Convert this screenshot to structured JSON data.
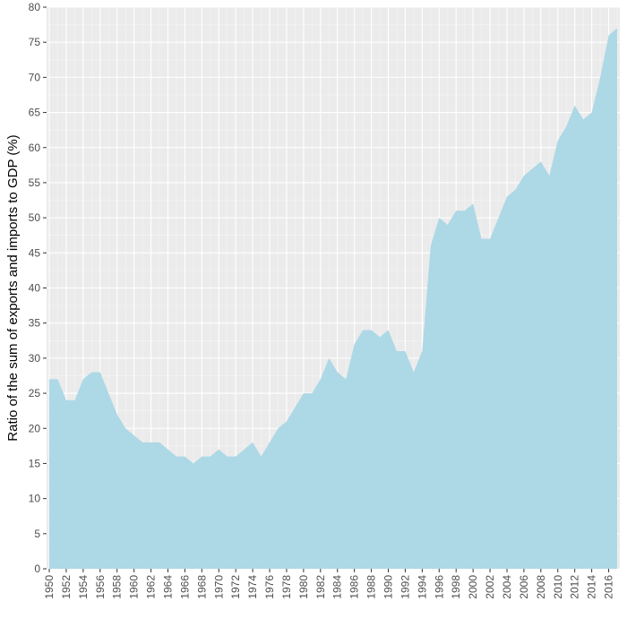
{
  "chart_data": {
    "type": "area",
    "title": "",
    "xlabel": "",
    "ylabel": "Ratio of the sum of exports and imports to GDP (%)",
    "xlim": [
      1950,
      2017
    ],
    "ylim": [
      0,
      80
    ],
    "grid": true,
    "y_ticks": [
      0,
      5,
      10,
      15,
      20,
      25,
      30,
      35,
      40,
      45,
      50,
      55,
      60,
      65,
      70,
      75,
      80
    ],
    "x_ticks": [
      1950,
      1952,
      1954,
      1956,
      1958,
      1960,
      1962,
      1964,
      1966,
      1968,
      1970,
      1972,
      1974,
      1976,
      1978,
      1980,
      1982,
      1984,
      1986,
      1988,
      1990,
      1992,
      1994,
      1996,
      1998,
      2000,
      2002,
      2004,
      2006,
      2008,
      2010,
      2012,
      2014,
      2016
    ],
    "colors": {
      "fill": "#add8e6",
      "panel": "#ebebeb",
      "grid_major": "#ffffff",
      "grid_minor": "#f5f5f5"
    },
    "x": [
      1950,
      1951,
      1952,
      1953,
      1954,
      1955,
      1956,
      1957,
      1958,
      1959,
      1960,
      1961,
      1962,
      1963,
      1964,
      1965,
      1966,
      1967,
      1968,
      1969,
      1970,
      1971,
      1972,
      1973,
      1974,
      1975,
      1976,
      1977,
      1978,
      1979,
      1980,
      1981,
      1982,
      1983,
      1984,
      1985,
      1986,
      1987,
      1988,
      1989,
      1990,
      1991,
      1992,
      1993,
      1994,
      1995,
      1996,
      1997,
      1998,
      1999,
      2000,
      2001,
      2002,
      2003,
      2004,
      2005,
      2006,
      2007,
      2008,
      2009,
      2010,
      2011,
      2012,
      2013,
      2014,
      2015,
      2016,
      2017
    ],
    "values": [
      27,
      27,
      24,
      24,
      27,
      28,
      28,
      25,
      22,
      20,
      19,
      18,
      18,
      18,
      17,
      16,
      16,
      15,
      16,
      16,
      17,
      16,
      16,
      17,
      18,
      16,
      18,
      20,
      21,
      23,
      25,
      25,
      27,
      30,
      28,
      27,
      32,
      34,
      34,
      33,
      34,
      31,
      31,
      28,
      31,
      46,
      50,
      49,
      51,
      51,
      52,
      47,
      47,
      50,
      53,
      54,
      56,
      57,
      58,
      56,
      61,
      63,
      66,
      64,
      65,
      70,
      76,
      77
    ]
  }
}
